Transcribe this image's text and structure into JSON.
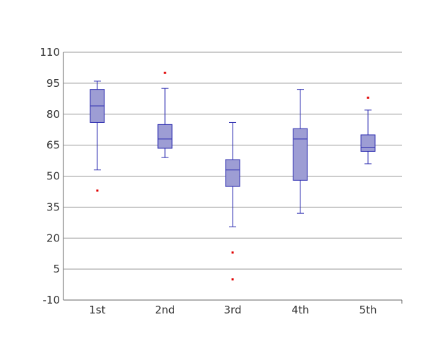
{
  "chart_data": {
    "type": "boxplot",
    "title": "",
    "xlabel": "",
    "ylabel": "",
    "categories": [
      "1st",
      "2nd",
      "3rd",
      "4th",
      "5th"
    ],
    "ylim": [
      -10,
      110
    ],
    "yticks": [
      -10,
      5,
      20,
      35,
      50,
      65,
      80,
      95,
      110
    ],
    "grid": true,
    "boxes": [
      {
        "category": "1st",
        "min": 53,
        "q1": 76,
        "median": 84,
        "q3": 92,
        "max": 96,
        "outliers": [
          43
        ]
      },
      {
        "category": "2nd",
        "min": 59,
        "q1": 63.5,
        "median": 68,
        "q3": 75,
        "max": 92.5,
        "outliers": [
          100
        ]
      },
      {
        "category": "3rd",
        "min": 25.5,
        "q1": 45,
        "median": 53,
        "q3": 58,
        "max": 76,
        "outliers": [
          13,
          0
        ]
      },
      {
        "category": "4th",
        "min": 32,
        "q1": 48,
        "median": 68,
        "q3": 73,
        "max": 92,
        "outliers": []
      },
      {
        "category": "5th",
        "min": 56,
        "q1": 62,
        "median": 64,
        "q3": 70,
        "max": 82,
        "outliers": [
          88
        ]
      }
    ],
    "colors": {
      "box_fill": "#9d9dd4",
      "box_stroke": "#2e2eb0",
      "whisker": "#2e2eb0",
      "outlier": "#e00000",
      "grid": "#999999",
      "axis": "#666666",
      "text": "#333333"
    }
  }
}
